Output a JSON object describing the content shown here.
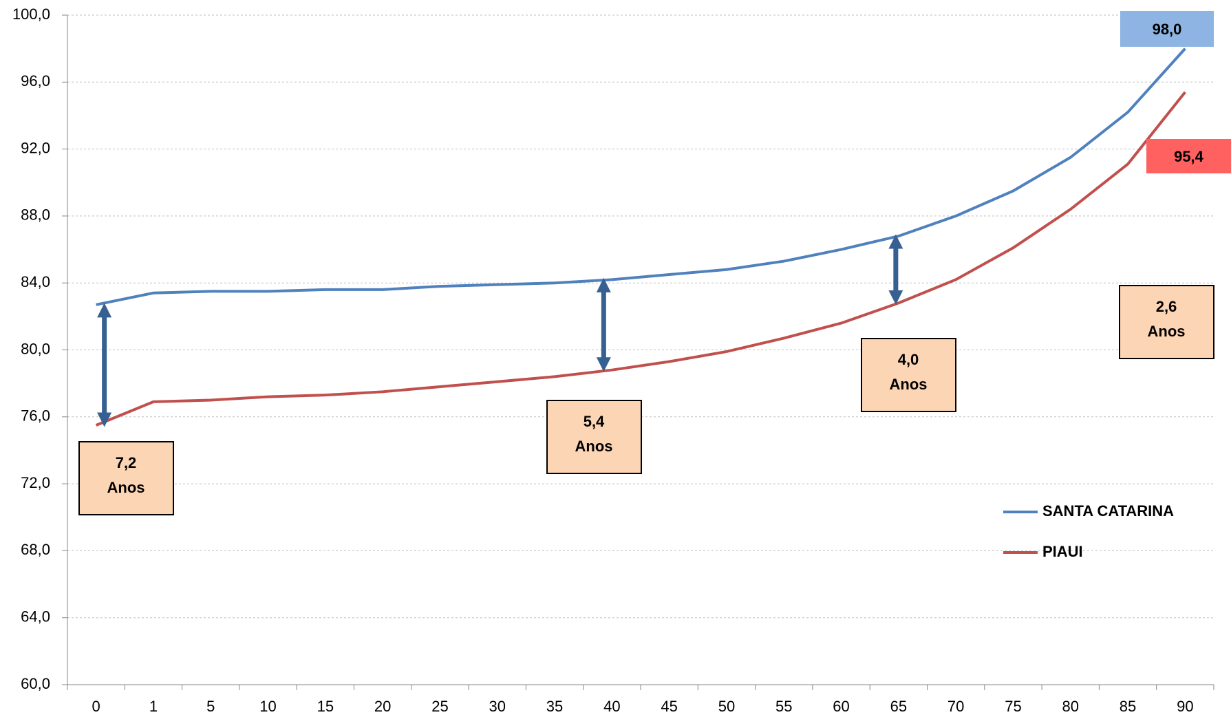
{
  "chart_data": {
    "type": "line",
    "categories": [
      "0",
      "1",
      "5",
      "10",
      "15",
      "20",
      "25",
      "30",
      "35",
      "40",
      "45",
      "50",
      "55",
      "60",
      "65",
      "70",
      "75",
      "80",
      "85",
      "90"
    ],
    "series": [
      {
        "name": "SANTA CATARINA",
        "color": "#4f81bd",
        "values": [
          82.7,
          83.4,
          83.5,
          83.5,
          83.6,
          83.6,
          83.8,
          83.9,
          84.0,
          84.2,
          84.5,
          84.8,
          85.3,
          86.0,
          86.8,
          88.0,
          89.5,
          91.5,
          94.2,
          98.0
        ]
      },
      {
        "name": "PIAUI",
        "color": "#c0504d",
        "values": [
          75.5,
          76.9,
          77.0,
          77.2,
          77.3,
          77.5,
          77.8,
          78.1,
          78.4,
          78.8,
          79.3,
          79.9,
          80.7,
          81.6,
          82.8,
          84.2,
          86.1,
          88.4,
          91.1,
          95.4
        ]
      }
    ],
    "ylim": [
      60,
      100
    ],
    "yticks": [
      {
        "value": 60,
        "label": "60,0"
      },
      {
        "value": 64,
        "label": "64,0"
      },
      {
        "value": 68,
        "label": "68,0"
      },
      {
        "value": 72,
        "label": "72,0"
      },
      {
        "value": 76,
        "label": "76,0"
      },
      {
        "value": 80,
        "label": "80,0"
      },
      {
        "value": 84,
        "label": "84,0"
      },
      {
        "value": 88,
        "label": "88,0"
      },
      {
        "value": 92,
        "label": "92,0"
      },
      {
        "value": 96,
        "label": "96,0"
      },
      {
        "value": 100,
        "label": "100,0"
      }
    ],
    "grid": true,
    "end_labels": [
      {
        "text": "98,0",
        "color": "#8db4e2"
      },
      {
        "text": "95,4",
        "color": "#ff6161"
      }
    ],
    "annotations": [
      {
        "lines": [
          "7,2",
          "Anos"
        ],
        "color": "#fcd5b5"
      },
      {
        "lines": [
          "5,4",
          "Anos"
        ],
        "color": "#fcd5b5"
      },
      {
        "lines": [
          "4,0",
          "Anos"
        ],
        "color": "#fcd5b5"
      },
      {
        "lines": [
          "2,6",
          "Anos"
        ],
        "color": "#fcd5b5"
      }
    ],
    "arrow_color": "#376092"
  }
}
